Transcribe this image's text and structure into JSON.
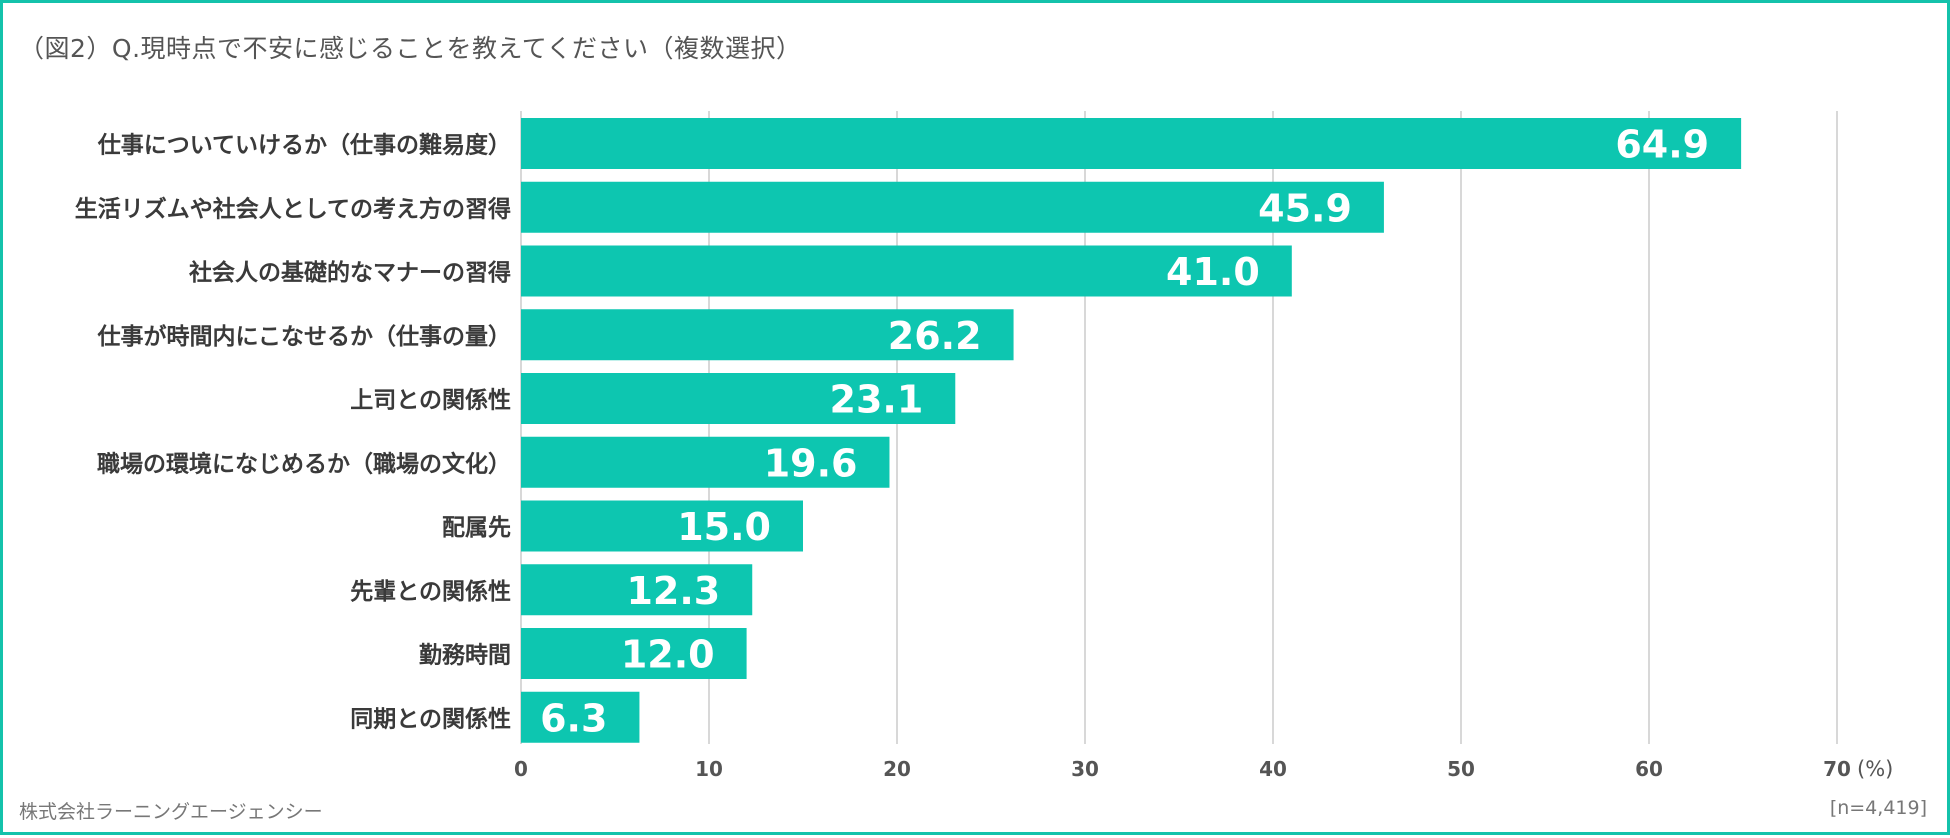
{
  "title": "（図2）Q.現時点で不安に感じることを教えてください（複数選択）",
  "footer": {
    "company": "株式会社ラーニングエージェンシー",
    "sample": "[n=4,419]"
  },
  "colors": {
    "bar": "#0dc6b0",
    "grid": "#cccccc",
    "frame": "#14c2ab"
  },
  "chart_data": {
    "type": "bar",
    "orientation": "horizontal",
    "title": "Q.現時点で不安に感じることを教えてください（複数選択）",
    "categories": [
      "仕事についていけるか（仕事の難易度）",
      "生活リズムや社会人としての考え方の習得",
      "社会人の基礎的なマナーの習得",
      "仕事が時間内にこなせるか（仕事の量）",
      "上司との関係性",
      "職場の環境になじめるか（職場の文化）",
      "配属先",
      "先輩との関係性",
      "勤務時間",
      "同期との関係性"
    ],
    "values": [
      64.9,
      45.9,
      41.0,
      26.2,
      23.1,
      19.6,
      15.0,
      12.3,
      12.0,
      6.3
    ],
    "value_labels": [
      "64.9",
      "45.9",
      "41.0",
      "26.2",
      "23.1",
      "19.6",
      "15.0",
      "12.3",
      "12.0",
      "6.3"
    ],
    "xlim": [
      0,
      70
    ],
    "xticks": [
      0,
      10,
      20,
      30,
      40,
      50,
      60,
      70
    ],
    "xtick_labels": [
      "0",
      "10",
      "20",
      "30",
      "40",
      "50",
      "60",
      "70"
    ],
    "unit": "(%)",
    "grid": true
  }
}
